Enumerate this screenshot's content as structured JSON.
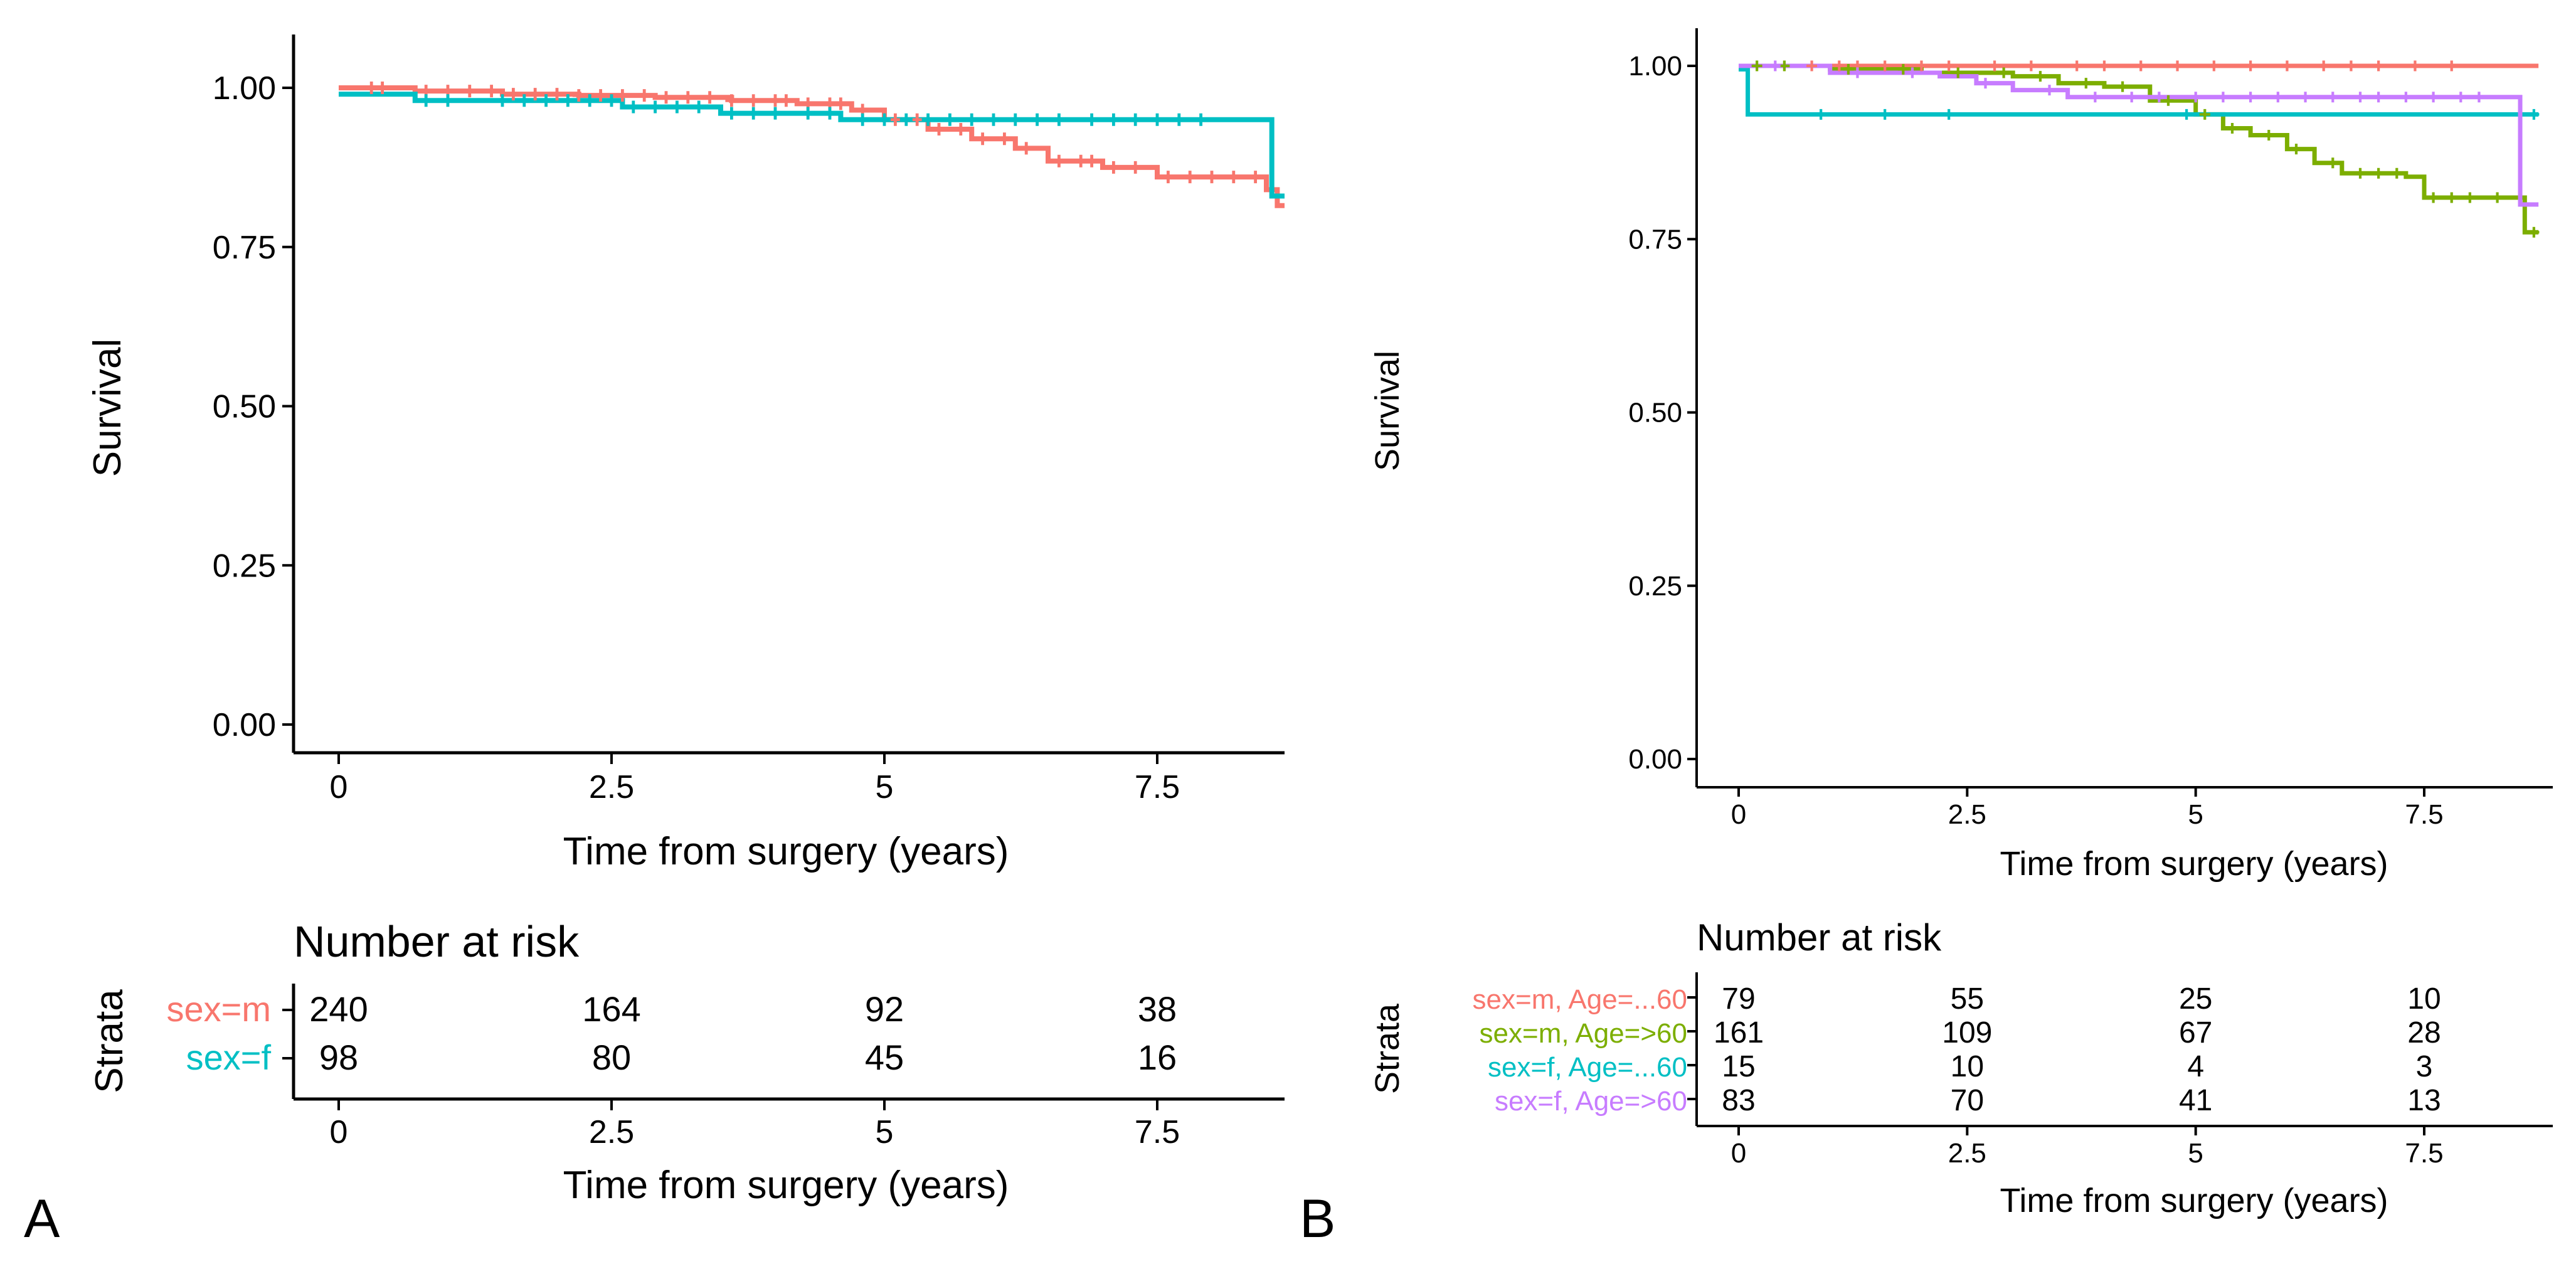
{
  "chart_data": [
    {
      "id": "A",
      "type": "line",
      "subtype": "kaplan-meier",
      "panel_label": "A",
      "xlabel": "Time from surgery (years)",
      "ylabel": "Survival",
      "xlim": [
        -0.6,
        8.8
      ],
      "ylim": [
        -0.05,
        1.03
      ],
      "x_ticks": [
        0,
        2.5,
        5,
        7.5
      ],
      "x_tick_labels": [
        "0",
        "2.5",
        "5",
        "7.5"
      ],
      "y_ticks": [
        0,
        0.25,
        0.5,
        0.75,
        1.0
      ],
      "y_tick_labels": [
        "0.00",
        "0.25",
        "0.50",
        "0.75",
        "1.00"
      ],
      "series": [
        {
          "name": "sex=m",
          "color": "#F8766D",
          "steps": [
            [
              0,
              1.0
            ],
            [
              0.7,
              0.995
            ],
            [
              1.5,
              0.99
            ],
            [
              2.2,
              0.988
            ],
            [
              2.9,
              0.985
            ],
            [
              3.6,
              0.98
            ],
            [
              4.2,
              0.975
            ],
            [
              4.7,
              0.965
            ],
            [
              5.0,
              0.95
            ],
            [
              5.4,
              0.935
            ],
            [
              5.8,
              0.92
            ],
            [
              6.2,
              0.905
            ],
            [
              6.5,
              0.885
            ],
            [
              7.0,
              0.875
            ],
            [
              7.5,
              0.86
            ],
            [
              8.5,
              0.84
            ],
            [
              8.6,
              0.815
            ],
            [
              8.75,
              0.815
            ]
          ],
          "censor_x": [
            0.3,
            0.4,
            0.8,
            1.0,
            1.2,
            1.4,
            1.6,
            1.8,
            2.0,
            2.2,
            2.4,
            2.6,
            2.8,
            3.0,
            3.2,
            3.4,
            3.6,
            3.8,
            4.0,
            4.1,
            4.3,
            4.5,
            4.6,
            4.8,
            5.1,
            5.3,
            5.5,
            5.7,
            5.9,
            6.1,
            6.3,
            6.6,
            6.8,
            6.9,
            7.1,
            7.3,
            7.6,
            7.8,
            8.0,
            8.2,
            8.4,
            8.7
          ]
        },
        {
          "name": "sex=f",
          "color": "#00BFC4",
          "steps": [
            [
              0,
              0.99
            ],
            [
              0.7,
              0.98
            ],
            [
              2.6,
              0.97
            ],
            [
              3.5,
              0.96
            ],
            [
              4.6,
              0.95
            ],
            [
              8.55,
              0.83
            ],
            [
              8.75,
              0.83
            ]
          ],
          "censor_x": [
            0.8,
            1.0,
            1.5,
            1.7,
            1.9,
            2.1,
            2.3,
            2.5,
            2.7,
            2.9,
            3.1,
            3.3,
            3.6,
            3.8,
            4.0,
            4.3,
            4.5,
            4.8,
            5.0,
            5.2,
            5.4,
            5.6,
            5.8,
            6.0,
            6.2,
            6.4,
            6.6,
            6.9,
            7.1,
            7.3,
            7.5,
            7.7,
            7.9,
            8.7
          ]
        }
      ],
      "risk_table": {
        "title": "Number at risk",
        "axis_title": "Strata",
        "xlabel": "Time from surgery (years)",
        "x_tick_labels": [
          "0",
          "2.5",
          "5",
          "7.5"
        ],
        "rows": [
          {
            "label": "sex=m",
            "color": "#F8766D",
            "values": [
              "240",
              "164",
              "92",
              "38"
            ]
          },
          {
            "label": "sex=f",
            "color": "#00BFC4",
            "values": [
              "98",
              "80",
              "45",
              "16"
            ]
          }
        ]
      }
    },
    {
      "id": "B",
      "type": "line",
      "subtype": "kaplan-meier",
      "panel_label": "B",
      "xlabel": "Time from surgery (years)",
      "ylabel": "Survival",
      "xlim": [
        -0.6,
        8.8
      ],
      "ylim": [
        -0.05,
        1.03
      ],
      "x_ticks": [
        0,
        2.5,
        5,
        7.5
      ],
      "x_tick_labels": [
        "0",
        "2.5",
        "5",
        "7.5"
      ],
      "y_ticks": [
        0,
        0.25,
        0.5,
        0.75,
        1.0
      ],
      "y_tick_labels": [
        "0.00",
        "0.25",
        "0.50",
        "0.75",
        "1.00"
      ],
      "series": [
        {
          "name": "sex=m, Age=...60",
          "color": "#F8766D",
          "steps": [
            [
              0,
              1.0
            ],
            [
              8.75,
              1.0
            ]
          ],
          "censor_x": [
            0.8,
            1.1,
            1.3,
            1.6,
            2.0,
            2.3,
            2.8,
            3.2,
            3.7,
            4.0,
            4.4,
            4.8,
            5.2,
            5.6,
            6.0,
            6.4,
            6.7,
            7.0,
            7.4,
            7.8
          ]
        },
        {
          "name": "sex=m, Age=>60",
          "color": "#7CAE00",
          "steps": [
            [
              0,
              1.0
            ],
            [
              1.0,
              0.995
            ],
            [
              2.0,
              0.99
            ],
            [
              3.0,
              0.985
            ],
            [
              3.5,
              0.975
            ],
            [
              4.0,
              0.97
            ],
            [
              4.5,
              0.95
            ],
            [
              5.0,
              0.93
            ],
            [
              5.3,
              0.91
            ],
            [
              5.6,
              0.9
            ],
            [
              6.0,
              0.88
            ],
            [
              6.3,
              0.86
            ],
            [
              6.6,
              0.845
            ],
            [
              7.3,
              0.84
            ],
            [
              7.5,
              0.81
            ],
            [
              8.1,
              0.81
            ],
            [
              8.6,
              0.76
            ],
            [
              8.75,
              0.76
            ]
          ],
          "censor_x": [
            0.2,
            0.5,
            1.2,
            1.8,
            2.4,
            2.9,
            3.3,
            3.8,
            4.2,
            4.7,
            5.1,
            5.4,
            5.8,
            6.1,
            6.5,
            6.8,
            7.0,
            7.2,
            7.6,
            7.8,
            8.0,
            8.3,
            8.7
          ]
        },
        {
          "name": "sex=f, Age=...60",
          "color": "#00BFC4",
          "steps": [
            [
              0,
              0.995
            ],
            [
              0.1,
              0.93
            ],
            [
              8.75,
              0.93
            ]
          ],
          "censor_x": [
            0.9,
            1.6,
            2.3,
            4.9,
            8.7
          ]
        },
        {
          "name": "sex=f, Age=>60",
          "color": "#C77CFF",
          "steps": [
            [
              0,
              1.0
            ],
            [
              1.0,
              0.99
            ],
            [
              2.2,
              0.985
            ],
            [
              2.6,
              0.975
            ],
            [
              3.0,
              0.965
            ],
            [
              3.6,
              0.955
            ],
            [
              8.55,
              0.8
            ],
            [
              8.75,
              0.8
            ]
          ],
          "censor_x": [
            0.4,
            1.3,
            1.9,
            2.7,
            3.4,
            3.9,
            4.3,
            4.6,
            5.0,
            5.3,
            5.6,
            5.9,
            6.2,
            6.5,
            6.8,
            7.0,
            7.3,
            7.6,
            7.9,
            8.1
          ]
        }
      ],
      "risk_table": {
        "title": "Number at risk",
        "axis_title": "Strata",
        "xlabel": "Time from surgery (years)",
        "x_tick_labels": [
          "0",
          "2.5",
          "5",
          "7.5"
        ],
        "rows": [
          {
            "label": "sex=m, Age=...60",
            "color": "#F8766D",
            "values": [
              "79",
              "55",
              "25",
              "10"
            ]
          },
          {
            "label": "sex=m, Age=>60",
            "color": "#7CAE00",
            "values": [
              "161",
              "109",
              "67",
              "28"
            ]
          },
          {
            "label": "sex=f, Age=...60",
            "color": "#00BFC4",
            "values": [
              "15",
              "10",
              "4",
              "3"
            ]
          },
          {
            "label": "sex=f, Age=>60",
            "color": "#C77CFF",
            "values": [
              "83",
              "70",
              "41",
              "13"
            ]
          }
        ]
      }
    }
  ]
}
